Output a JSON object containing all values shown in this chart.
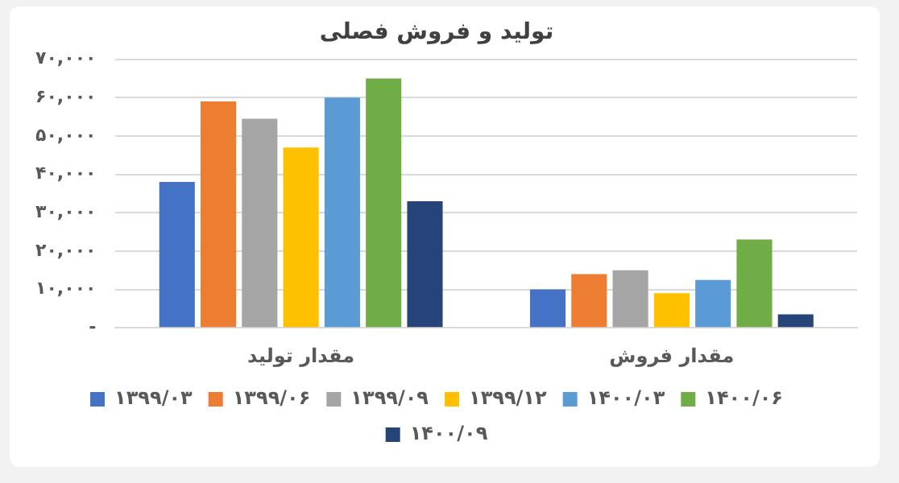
{
  "chart_data": {
    "type": "bar",
    "title": "تولید و فروش فصلی",
    "categories": [
      "مقدار تولید",
      "مقدار فروش"
    ],
    "series": [
      {
        "name": "۱۳۹۹/۰۳",
        "color": "#4472c4",
        "values": [
          38000,
          10000
        ]
      },
      {
        "name": "۱۳۹۹/۰۶",
        "color": "#ed7d31",
        "values": [
          59000,
          14000
        ]
      },
      {
        "name": "۱۳۹۹/۰۹",
        "color": "#a5a5a5",
        "values": [
          54500,
          15000
        ]
      },
      {
        "name": "۱۳۹۹/۱۲",
        "color": "#ffc000",
        "values": [
          47000,
          9000
        ]
      },
      {
        "name": "۱۴۰۰/۰۳",
        "color": "#5b9bd5",
        "values": [
          60000,
          12500
        ]
      },
      {
        "name": "۱۴۰۰/۰۶",
        "color": "#70ad47",
        "values": [
          65000,
          23000
        ]
      },
      {
        "name": "۱۴۰۰/۰۹",
        "color": "#264478",
        "values": [
          33000,
          3500
        ]
      }
    ],
    "ylim": [
      0,
      70000
    ],
    "yticks": [
      {
        "value": 0,
        "label": "-"
      },
      {
        "value": 10000,
        "label": "۱۰,۰۰۰"
      },
      {
        "value": 20000,
        "label": "۲۰,۰۰۰"
      },
      {
        "value": 30000,
        "label": "۳۰,۰۰۰"
      },
      {
        "value": 40000,
        "label": "۴۰,۰۰۰"
      },
      {
        "value": 50000,
        "label": "۵۰,۰۰۰"
      },
      {
        "value": 60000,
        "label": "۶۰,۰۰۰"
      },
      {
        "value": 70000,
        "label": "۷۰,۰۰۰"
      }
    ],
    "grid": "y",
    "legend": "bottom"
  }
}
